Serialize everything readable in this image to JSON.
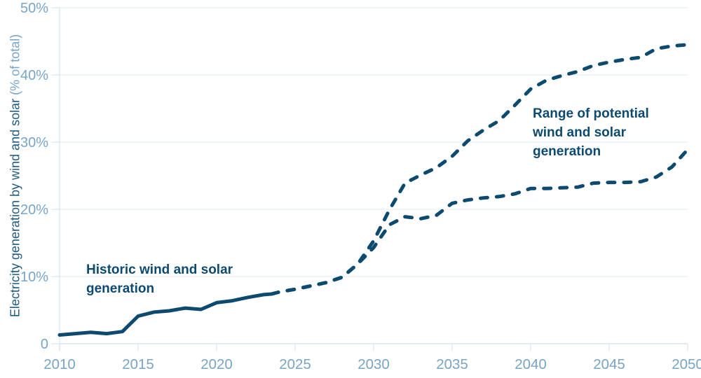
{
  "page": {
    "background": "#ffffff",
    "description": "Line chart of historic and projected share of electricity generation from wind and solar, 2010-2050"
  },
  "chart_data": {
    "type": "line",
    "title": "",
    "ylabel_main": "Electricity generation by wind and solar",
    "ylabel_unit": "(% of total)",
    "xlabel": "",
    "xlim": [
      2010,
      2050
    ],
    "ylim": [
      0,
      50
    ],
    "grid": "horizontal gridlines on, light blue",
    "legend_position": "none (series labeled by in-plot annotations)",
    "x_ticks": [
      2010,
      2015,
      2020,
      2025,
      2030,
      2035,
      2040,
      2045,
      2050
    ],
    "y_ticks": [
      {
        "value": 0,
        "label": "0"
      },
      {
        "value": 10,
        "label": "10%"
      },
      {
        "value": 20,
        "label": "20%"
      },
      {
        "value": 30,
        "label": "30%"
      },
      {
        "value": 40,
        "label": "40%"
      },
      {
        "value": 50,
        "label": "50%"
      }
    ],
    "colors": {
      "line": "#0d4a70",
      "annotation_text": "#0d4a70",
      "axis_label": "#76a5c8",
      "ylabel_main": "#1f5a80",
      "ylabel_unit": "#76a5c8",
      "gridline": "#e7eff6",
      "axis_tick": "#d5e3ef"
    },
    "series": [
      {
        "id": "historic",
        "name": "Historic wind and solar generation",
        "style": "solid",
        "x": [
          2010,
          2011,
          2012,
          2013,
          2014,
          2015,
          2016,
          2017,
          2018,
          2019,
          2020,
          2021,
          2022,
          2023,
          2023.5
        ],
        "y": [
          1.3,
          1.5,
          1.7,
          1.5,
          1.8,
          4.1,
          4.7,
          4.9,
          5.3,
          5.1,
          6.1,
          6.4,
          6.9,
          7.3,
          7.4
        ]
      },
      {
        "id": "potential-high",
        "name": "Range of potential wind and solar generation (upper bound)",
        "style": "dashed",
        "x": [
          2023.5,
          2024,
          2025,
          2026,
          2027,
          2028,
          2029,
          2030,
          2031,
          2032,
          2033,
          2034,
          2035,
          2036,
          2037,
          2038,
          2039,
          2040,
          2041,
          2042,
          2043,
          2044,
          2045,
          2046,
          2047,
          2048,
          2049,
          2050
        ],
        "y": [
          7.4,
          7.7,
          8.1,
          8.6,
          9.1,
          9.9,
          11.9,
          15.3,
          19.9,
          23.9,
          25.1,
          26.2,
          27.9,
          30.2,
          31.8,
          33.2,
          35.5,
          37.9,
          39.2,
          39.9,
          40.5,
          41.4,
          41.9,
          42.3,
          42.6,
          43.9,
          44.3,
          44.5
        ]
      },
      {
        "id": "potential-low",
        "name": "Range of potential wind and solar generation (lower bound)",
        "style": "dashed",
        "x": [
          2023.5,
          2024,
          2025,
          2026,
          2027,
          2028,
          2029,
          2030,
          2031,
          2032,
          2033,
          2034,
          2035,
          2036,
          2037,
          2038,
          2039,
          2040,
          2041,
          2042,
          2043,
          2044,
          2045,
          2046,
          2047,
          2048,
          2049,
          2050
        ],
        "y": [
          7.4,
          7.7,
          8.1,
          8.6,
          9.1,
          9.9,
          11.9,
          14.3,
          17.7,
          18.9,
          18.6,
          19.1,
          20.9,
          21.4,
          21.7,
          21.9,
          22.3,
          23.1,
          23.1,
          23.2,
          23.3,
          23.9,
          24.0,
          24.0,
          24.1,
          24.8,
          26.3,
          28.9
        ]
      }
    ],
    "annotations": [
      {
        "id": "historic",
        "text": "Historic wind and solar\ngeneration"
      },
      {
        "id": "range",
        "text": "Range of potential\nwind and solar\ngeneration"
      }
    ]
  }
}
